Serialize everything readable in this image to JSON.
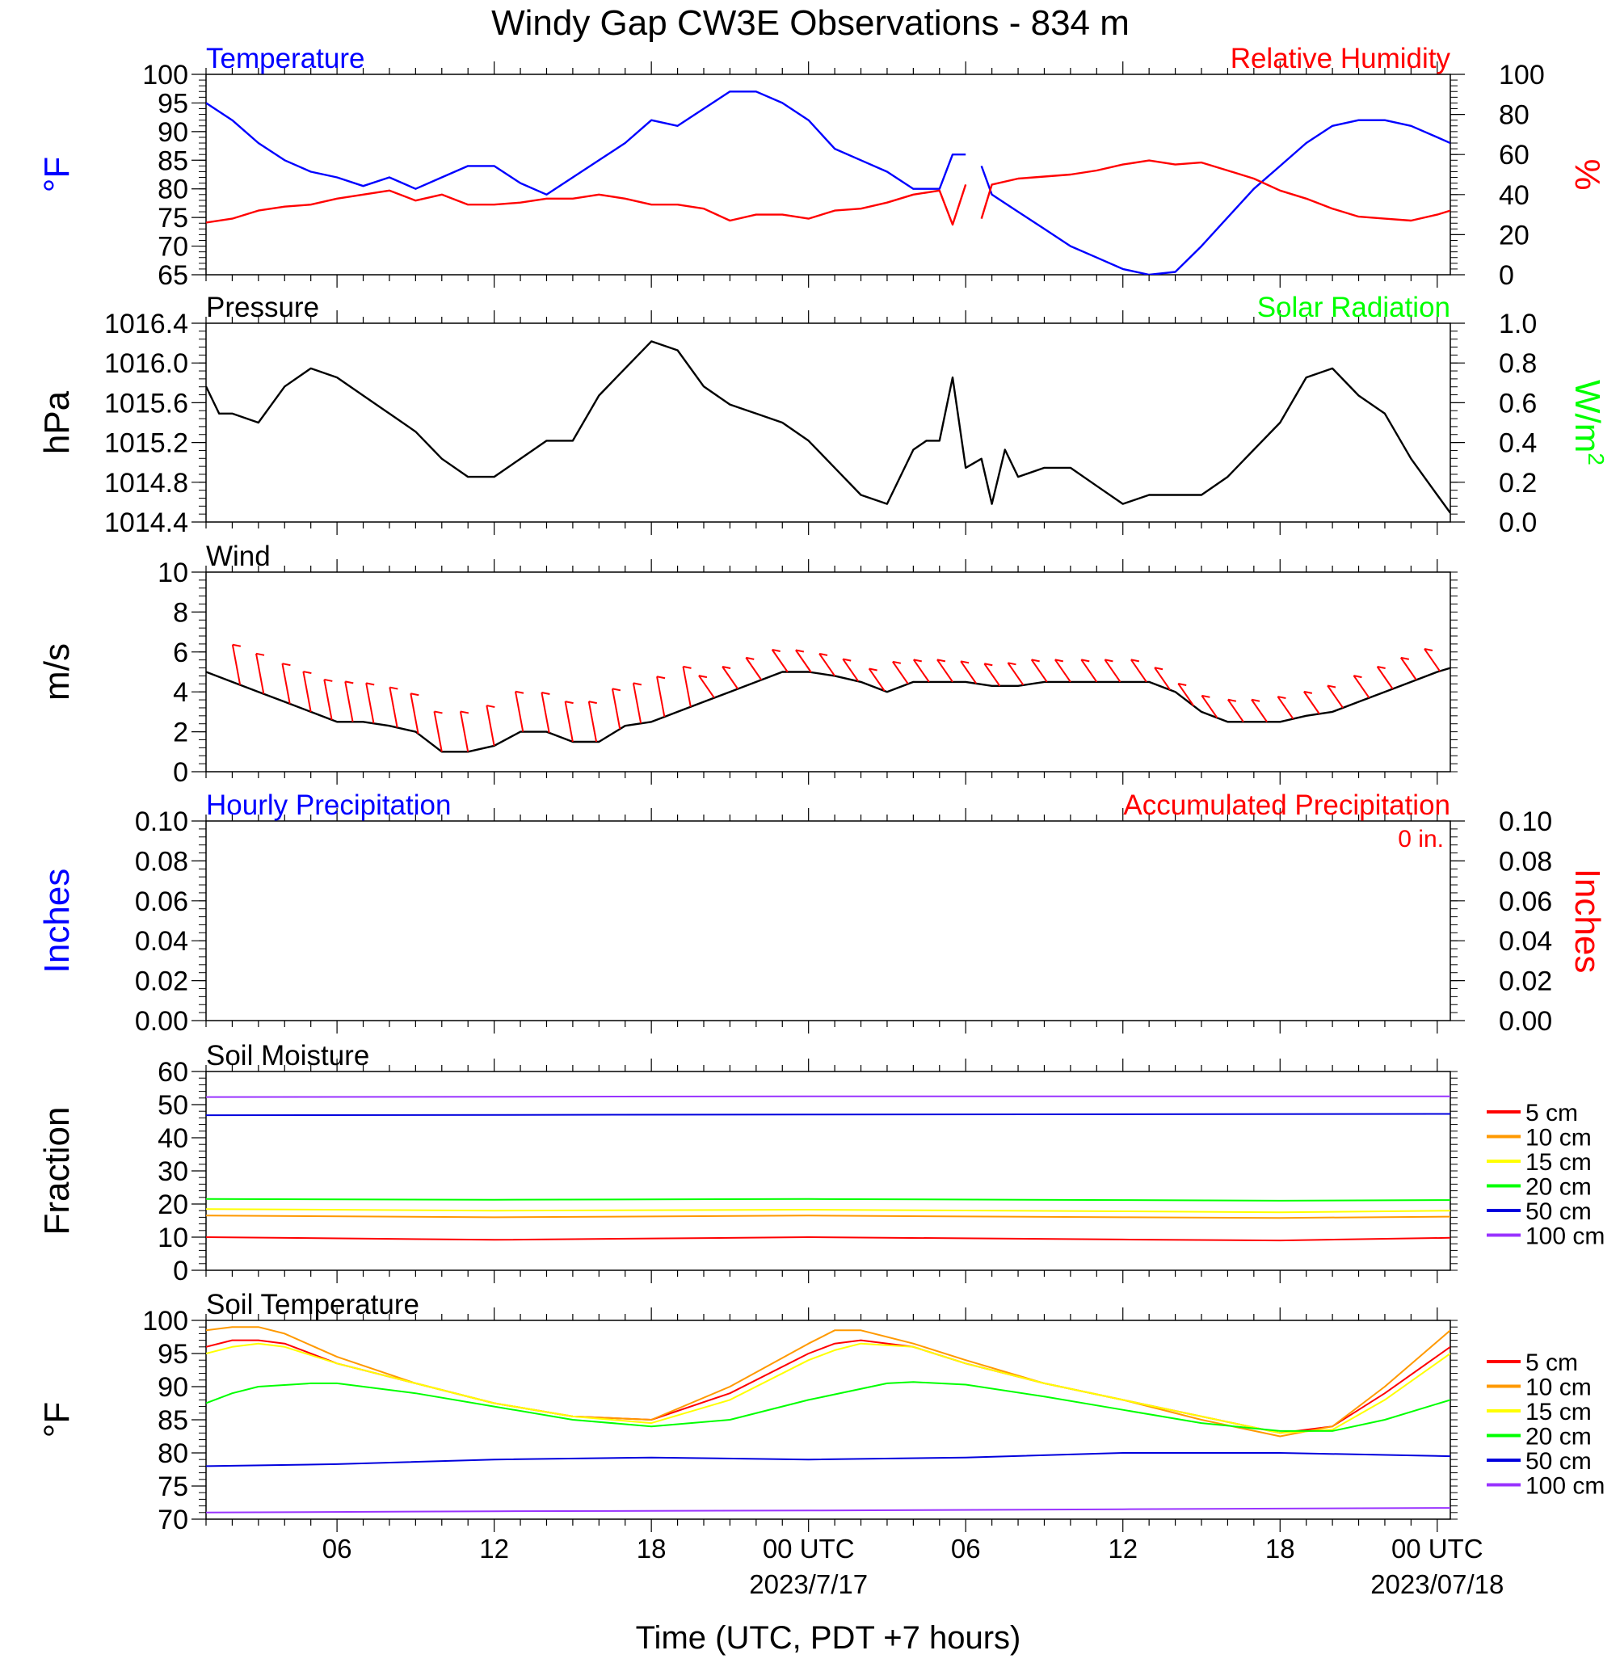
{
  "title": "Windy Gap CW3E Observations - 834 m",
  "x_axis": {
    "title": "Time (UTC, PDT +7 hours)",
    "ticks": [
      "06",
      "12",
      "18",
      "00 UTC",
      "06",
      "12",
      "18",
      "00 UTC"
    ],
    "tick_hours": [
      6,
      12,
      18,
      24,
      30,
      36,
      42,
      48
    ],
    "dates": [
      "2023/7/17",
      "2023/07/18"
    ],
    "date_hours": [
      24,
      48
    ],
    "range_hours": [
      1,
      48.5
    ]
  },
  "colors": {
    "temperature": "#0000ff",
    "humidity": "#ff0000",
    "solar": "#00ff00",
    "pressure": "#000000",
    "wind": "#000000",
    "barb": "#ff0000",
    "precip_hourly": "#0000ff",
    "precip_accum": "#ff0000"
  },
  "legend": {
    "labels": [
      "5 cm",
      "10 cm",
      "15 cm",
      "20 cm",
      "50 cm",
      "100 cm"
    ],
    "colors": [
      "#ff0000",
      "#ff9900",
      "#ffff00",
      "#00ff00",
      "#0000dd",
      "#9933ff"
    ]
  },
  "chart_data": [
    {
      "type": "line",
      "title_left": "Temperature",
      "title_right": "Relative Humidity",
      "ylabel_left": "°F",
      "ylabel_right": "%",
      "ylim_left": [
        65,
        100
      ],
      "yticks_left": [
        "65",
        "70",
        "75",
        "80",
        "85",
        "90",
        "95",
        "100"
      ],
      "ylim_right": [
        0,
        100
      ],
      "yticks_right": [
        "0",
        "20",
        "40",
        "60",
        "80",
        "100"
      ],
      "gap_hours": [
        30.1,
        30.6
      ],
      "series": [
        {
          "name": "Temperature",
          "axis": "left",
          "x": [
            1,
            2,
            3,
            4,
            5,
            6,
            7,
            8,
            9,
            10,
            11,
            12,
            13,
            14,
            15,
            16,
            17,
            18,
            19,
            20,
            21,
            22,
            23,
            24,
            25,
            26,
            27,
            28,
            29,
            29.5,
            30,
            30.6,
            31,
            32,
            33,
            34,
            35,
            36,
            37,
            38,
            39,
            40,
            41,
            42,
            43,
            44,
            45,
            46,
            47,
            48,
            48.5
          ],
          "y": [
            95,
            92,
            88,
            85,
            83,
            82,
            80.5,
            82,
            80,
            82,
            84,
            84,
            81,
            79,
            82,
            85,
            88,
            92,
            91,
            94,
            97,
            97,
            95,
            92,
            87,
            85,
            83,
            80,
            80,
            86,
            86,
            84,
            79,
            76,
            73,
            70,
            68,
            66,
            65,
            65.5,
            70,
            75,
            80,
            84,
            88,
            91,
            92,
            92,
            91,
            89,
            88
          ]
        },
        {
          "name": "Relative Humidity",
          "axis": "right",
          "x": [
            1,
            2,
            3,
            4,
            5,
            6,
            7,
            8,
            9,
            10,
            11,
            12,
            13,
            14,
            15,
            16,
            17,
            18,
            19,
            20,
            21,
            22,
            23,
            24,
            25,
            26,
            27,
            28,
            29,
            29.5,
            30,
            30.6,
            31,
            32,
            33,
            34,
            35,
            36,
            37,
            38,
            39,
            40,
            41,
            42,
            43,
            44,
            45,
            46,
            47,
            48,
            48.5
          ],
          "y": [
            26,
            28,
            32,
            34,
            35,
            38,
            40,
            42,
            37,
            40,
            35,
            35,
            36,
            38,
            38,
            40,
            38,
            35,
            35,
            33,
            27,
            30,
            30,
            28,
            32,
            33,
            36,
            40,
            42,
            25,
            45,
            28,
            45,
            48,
            49,
            50,
            52,
            55,
            57,
            55,
            56,
            52,
            48,
            42,
            38,
            33,
            29,
            28,
            27,
            30,
            32
          ]
        }
      ]
    },
    {
      "type": "line",
      "title_left": "Pressure",
      "title_right": "Solar Radiation",
      "ylabel_left": "hPa",
      "ylabel_right": "W/m",
      "ylabel_right_sup": "2",
      "ylim_left": [
        1014.3,
        1016.5
      ],
      "yticks_left": [
        "1014.4",
        "1014.8",
        "1015.2",
        "1015.6",
        "1016.0",
        "1016.4"
      ],
      "ylim_right": [
        0.0,
        1.0
      ],
      "yticks_right": [
        "0.0",
        "0.2",
        "0.4",
        "0.6",
        "0.8",
        "1.0"
      ],
      "series": [
        {
          "name": "Pressure",
          "axis": "left",
          "x": [
            1,
            1.5,
            2,
            3,
            4,
            5,
            6,
            7,
            8,
            9,
            10,
            11,
            12,
            13,
            14,
            15,
            16,
            17,
            18,
            19,
            20,
            21,
            22,
            23,
            24,
            25,
            26,
            27,
            28,
            28.5,
            29,
            29.5,
            30,
            30.6,
            31,
            31.5,
            32,
            33,
            34,
            35,
            36,
            37,
            38,
            39,
            40,
            41,
            42,
            43,
            44,
            45,
            46,
            47,
            48,
            48.5
          ],
          "y": [
            1015.8,
            1015.5,
            1015.5,
            1015.4,
            1015.8,
            1016.0,
            1015.9,
            1015.7,
            1015.5,
            1015.3,
            1015.0,
            1014.8,
            1014.8,
            1015.0,
            1015.2,
            1015.2,
            1015.7,
            1016.0,
            1016.3,
            1016.2,
            1015.8,
            1015.6,
            1015.5,
            1015.4,
            1015.2,
            1014.9,
            1014.6,
            1014.5,
            1015.1,
            1015.2,
            1015.2,
            1015.9,
            1014.9,
            1015.0,
            1014.5,
            1015.1,
            1014.8,
            1014.9,
            1014.9,
            1014.7,
            1014.5,
            1014.6,
            1014.6,
            1014.6,
            1014.8,
            1015.1,
            1015.4,
            1015.9,
            1016.0,
            1015.7,
            1015.5,
            1015.0,
            1014.6,
            1014.4
          ]
        },
        {
          "name": "Solar Radiation",
          "axis": "right",
          "x": [],
          "y": []
        }
      ]
    },
    {
      "type": "line",
      "title_left": "Wind",
      "ylabel_left": "m/s",
      "ylim_left": [
        0,
        10
      ],
      "yticks_left": [
        "0",
        "2",
        "4",
        "6",
        "8",
        "10"
      ],
      "series": [
        {
          "name": "Wind",
          "axis": "left",
          "x": [
            1,
            2,
            3,
            4,
            5,
            6,
            7,
            8,
            9,
            10,
            11,
            12,
            13,
            14,
            15,
            16,
            17,
            18,
            19,
            20,
            21,
            22,
            23,
            24,
            25,
            26,
            27,
            28,
            29,
            30,
            31,
            32,
            33,
            34,
            35,
            36,
            37,
            38,
            39,
            40,
            41,
            42,
            43,
            44,
            45,
            46,
            47,
            48,
            48.5
          ],
          "y": [
            5,
            4.5,
            4,
            3.5,
            3,
            2.5,
            2.5,
            2.3,
            2,
            1,
            1,
            1.3,
            2,
            2,
            1.5,
            1.5,
            2.3,
            2.5,
            3,
            3.5,
            4,
            4.5,
            5,
            5,
            4.8,
            4.5,
            4,
            4.5,
            4.5,
            4.5,
            4.3,
            4.3,
            4.5,
            4.5,
            4.5,
            4.5,
            4.5,
            4,
            3,
            2.5,
            2.5,
            2.5,
            2.8,
            3,
            3.5,
            4,
            4.5,
            5,
            5.2
          ]
        }
      ],
      "barbs": {
        "x": [
          2.3,
          3.2,
          4.2,
          5.0,
          5.8,
          6.6,
          7.4,
          8.3,
          9.1,
          10.0,
          11.0,
          12.0,
          13.1,
          14.1,
          15.0,
          15.9,
          16.8,
          17.6,
          18.5,
          19.5,
          20.4,
          21.3,
          22.2,
          23.2,
          24.1,
          25.0,
          25.9,
          26.9,
          27.8,
          28.6,
          29.5,
          30.4,
          31.3,
          32.2,
          33.1,
          34.0,
          35.0,
          35.9,
          36.9,
          37.8,
          38.7,
          39.6,
          40.6,
          41.5,
          42.5,
          43.5,
          44.4,
          45.4,
          46.3,
          47.2,
          48.1
        ]
      }
    },
    {
      "type": "line",
      "title_left": "Hourly Precipitation",
      "title_right": "Accumulated Precipitation",
      "annotation": "0 in.",
      "ylabel_left": "Inches",
      "ylabel_right": "Inches",
      "ylim_left": [
        0,
        0.1
      ],
      "yticks_left": [
        "0.00",
        "0.02",
        "0.04",
        "0.06",
        "0.08",
        "0.10"
      ],
      "ylim_right": [
        0,
        0.1
      ],
      "yticks_right": [
        "0.00",
        "0.02",
        "0.04",
        "0.06",
        "0.08",
        "0.10"
      ],
      "gap_hours": [
        30.1,
        30.6
      ],
      "series": [
        {
          "name": "Hourly Precipitation",
          "axis": "left",
          "x": [
            1,
            48.5
          ],
          "y": [
            0,
            0
          ]
        },
        {
          "name": "Accumulated Precipitation",
          "axis": "right",
          "x": [
            1,
            48.5
          ],
          "y": [
            0,
            0
          ]
        }
      ]
    },
    {
      "type": "line",
      "title_left": "Soil Moisture",
      "ylabel_left": "Fraction",
      "ylim_left": [
        0,
        60
      ],
      "yticks_left": [
        "0",
        "10",
        "20",
        "30",
        "40",
        "50",
        "60"
      ],
      "series": [
        {
          "name": "5 cm",
          "axis": "left",
          "x": [
            1,
            12,
            24,
            36,
            42,
            48.5
          ],
          "y": [
            10,
            9.2,
            10,
            9.3,
            9,
            9.8
          ]
        },
        {
          "name": "10 cm",
          "axis": "left",
          "x": [
            1,
            12,
            24,
            36,
            42,
            48.5
          ],
          "y": [
            16.5,
            16,
            16.5,
            16,
            15.8,
            16.2
          ]
        },
        {
          "name": "15 cm",
          "axis": "left",
          "x": [
            1,
            12,
            24,
            36,
            42,
            48.5
          ],
          "y": [
            18.5,
            18,
            18.3,
            17.8,
            17.5,
            18
          ]
        },
        {
          "name": "20 cm",
          "axis": "left",
          "x": [
            1,
            12,
            24,
            36,
            42,
            48.5
          ],
          "y": [
            21.5,
            21.3,
            21.5,
            21.2,
            21,
            21.2
          ]
        },
        {
          "name": "50 cm",
          "axis": "left",
          "x": [
            1,
            24,
            48.5
          ],
          "y": [
            46.8,
            47,
            47.2
          ]
        },
        {
          "name": "100 cm",
          "axis": "left",
          "x": [
            1,
            24,
            48.5
          ],
          "y": [
            52.3,
            52.5,
            52.5
          ]
        }
      ]
    },
    {
      "type": "line",
      "title_left": "Soil Temperature",
      "ylabel_left": "°F",
      "ylim_left": [
        70,
        100
      ],
      "yticks_left": [
        "70",
        "75",
        "80",
        "85",
        "90",
        "95",
        "100"
      ],
      "series": [
        {
          "name": "5 cm",
          "axis": "left",
          "x": [
            1,
            2,
            3,
            4,
            6,
            9,
            12,
            15,
            18,
            21,
            24,
            25,
            26,
            28,
            30,
            33,
            36,
            39,
            42,
            44,
            46,
            48.5
          ],
          "y": [
            96,
            97,
            97,
            96.5,
            93.5,
            90.5,
            87.5,
            85.5,
            85,
            89,
            95,
            96.5,
            97,
            96,
            93.5,
            90.5,
            88,
            85.5,
            83,
            84,
            89,
            96
          ]
        },
        {
          "name": "10 cm",
          "axis": "left",
          "x": [
            1,
            2,
            3,
            4,
            6,
            9,
            12,
            15,
            18,
            21,
            24,
            25,
            26,
            28,
            30,
            33,
            36,
            39,
            42,
            44,
            46,
            48.5
          ],
          "y": [
            98.5,
            99,
            99,
            98,
            94.5,
            90.5,
            87.5,
            85.5,
            85,
            90,
            96.5,
            98.5,
            98.5,
            96.5,
            94,
            90.5,
            88,
            85,
            82.5,
            84,
            90,
            98.5
          ]
        },
        {
          "name": "15 cm",
          "axis": "left",
          "x": [
            1,
            2,
            3,
            4,
            6,
            9,
            12,
            15,
            18,
            21,
            24,
            25,
            26,
            28,
            30,
            33,
            36,
            39,
            42,
            44,
            46,
            48.5
          ],
          "y": [
            95,
            96,
            96.5,
            96,
            93.5,
            90.5,
            87.5,
            85.5,
            84.5,
            88,
            94,
            95.5,
            96.5,
            96,
            93.5,
            90.5,
            88,
            85.5,
            83,
            83.5,
            88,
            95
          ]
        },
        {
          "name": "20 cm",
          "axis": "left",
          "x": [
            1,
            2,
            3,
            5,
            6,
            9,
            12,
            15,
            18,
            21,
            24,
            27,
            28,
            30,
            33,
            36,
            39,
            42,
            44,
            46,
            48.5
          ],
          "y": [
            87.5,
            89,
            90,
            90.5,
            90.5,
            89,
            87,
            85,
            84,
            85,
            88,
            90.5,
            90.7,
            90.3,
            88.5,
            86.5,
            84.5,
            83.3,
            83.3,
            85,
            88
          ]
        },
        {
          "name": "50 cm",
          "axis": "left",
          "x": [
            1,
            6,
            12,
            18,
            24,
            30,
            36,
            42,
            48.5
          ],
          "y": [
            78,
            78.3,
            79,
            79.3,
            79,
            79.3,
            80,
            80,
            79.5
          ]
        },
        {
          "name": "100 cm",
          "axis": "left",
          "x": [
            1,
            12,
            24,
            36,
            48.5
          ],
          "y": [
            71,
            71.2,
            71.3,
            71.5,
            71.7
          ]
        }
      ]
    }
  ]
}
